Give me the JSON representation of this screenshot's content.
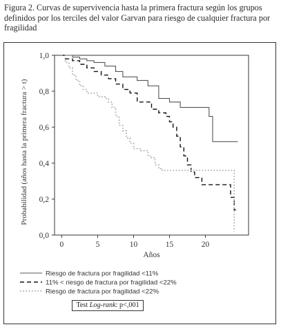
{
  "caption": "Figura 2. Curvas de supervivencia hasta la primera fractura según los grupos definidos por los terciles del valor Garvan para riesgo de cualquier fractura por fragilidad",
  "test_label": {
    "prefix": "Test ",
    "italic": "Log-rank",
    "suffix": ": p<,001"
  },
  "colors": {
    "low": "#555555",
    "mid": "#111111",
    "high": "#aaaaaa"
  },
  "chart_data": {
    "type": "line",
    "xlabel": "Años",
    "ylabel": "Probabilidad (años hasta la primera fractura > t)",
    "xlim": [
      -1,
      26
    ],
    "ylim": [
      0,
      1
    ],
    "xticks": [
      0,
      5,
      10,
      15,
      20
    ],
    "yticks": [
      0.0,
      0.2,
      0.4,
      0.6,
      0.8,
      1.0
    ],
    "ytick_labels": [
      "0,0",
      "0,2",
      "0,4",
      "0,6",
      "0,8",
      "1,0"
    ],
    "grid": false,
    "legend_position": "bottom",
    "series": [
      {
        "name": "Riesgo de fractura por fragilidad <11%",
        "style": "solid",
        "x": [
          0,
          1.5,
          2.5,
          3.5,
          4.5,
          6,
          7.5,
          8.5,
          10.5,
          12,
          13.5,
          15,
          16.5,
          17.5,
          20.5,
          21,
          24.5
        ],
        "y": [
          1.0,
          0.99,
          0.98,
          0.97,
          0.96,
          0.94,
          0.91,
          0.88,
          0.86,
          0.83,
          0.76,
          0.74,
          0.71,
          0.71,
          0.66,
          0.52,
          0.52
        ]
      },
      {
        "name": "11% < riesgo de fractura por fragilidad <22%",
        "style": "dashed",
        "x": [
          0,
          0.5,
          1.5,
          2.5,
          3.5,
          4.5,
          5.5,
          6.5,
          7.5,
          8.5,
          9.5,
          10.5,
          12.5,
          13.5,
          14.5,
          15,
          15.5,
          16,
          16.5,
          17,
          17.5,
          18,
          18.5,
          19.5,
          23,
          23.5,
          24,
          24.5
        ],
        "y": [
          1.0,
          0.98,
          0.97,
          0.95,
          0.93,
          0.91,
          0.89,
          0.87,
          0.84,
          0.81,
          0.79,
          0.74,
          0.7,
          0.68,
          0.66,
          0.63,
          0.6,
          0.55,
          0.49,
          0.44,
          0.39,
          0.35,
          0.32,
          0.28,
          0.28,
          0.21,
          0.14,
          0.14
        ]
      },
      {
        "name": "Riesgo de fractura por fragilidad <22%",
        "style": "dotted",
        "x": [
          0,
          0.5,
          1,
          1.5,
          2,
          2.5,
          3,
          3.5,
          4,
          5,
          6,
          6.5,
          7,
          7.5,
          8,
          8.5,
          9,
          9.5,
          10,
          11,
          12,
          12.5,
          13,
          13.5,
          14,
          23.5,
          24
        ],
        "y": [
          1.0,
          0.96,
          0.93,
          0.89,
          0.86,
          0.83,
          0.81,
          0.79,
          0.79,
          0.77,
          0.76,
          0.74,
          0.71,
          0.66,
          0.61,
          0.58,
          0.54,
          0.51,
          0.48,
          0.47,
          0.44,
          0.43,
          0.39,
          0.37,
          0.36,
          0.36,
          0.02
        ]
      }
    ]
  }
}
